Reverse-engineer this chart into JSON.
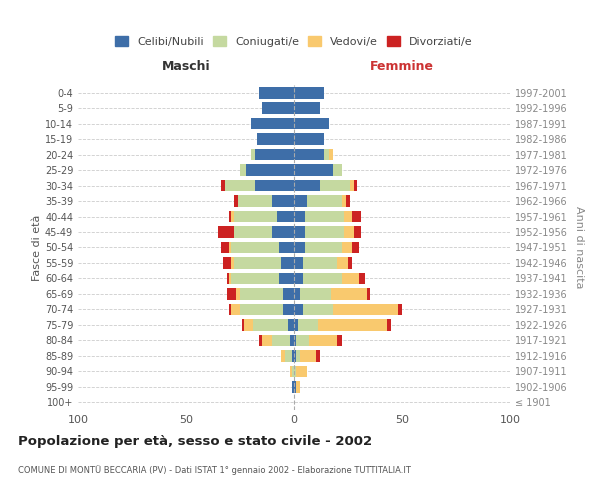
{
  "age_groups": [
    "100+",
    "95-99",
    "90-94",
    "85-89",
    "80-84",
    "75-79",
    "70-74",
    "65-69",
    "60-64",
    "55-59",
    "50-54",
    "45-49",
    "40-44",
    "35-39",
    "30-34",
    "25-29",
    "20-24",
    "15-19",
    "10-14",
    "5-9",
    "0-4"
  ],
  "birth_years": [
    "≤ 1901",
    "1902-1906",
    "1907-1911",
    "1912-1916",
    "1917-1921",
    "1922-1926",
    "1927-1931",
    "1932-1936",
    "1937-1941",
    "1942-1946",
    "1947-1951",
    "1952-1956",
    "1957-1961",
    "1962-1966",
    "1967-1971",
    "1972-1976",
    "1977-1981",
    "1982-1986",
    "1987-1991",
    "1992-1996",
    "1997-2001"
  ],
  "males": {
    "celibi": [
      0,
      1,
      0,
      1,
      2,
      3,
      5,
      5,
      7,
      6,
      7,
      10,
      8,
      10,
      18,
      22,
      18,
      17,
      20,
      15,
      16
    ],
    "coniugati": [
      0,
      0,
      1,
      3,
      8,
      16,
      20,
      20,
      22,
      22,
      22,
      18,
      20,
      16,
      14,
      3,
      2,
      0,
      0,
      0,
      0
    ],
    "vedovi": [
      0,
      0,
      1,
      2,
      5,
      4,
      4,
      2,
      1,
      1,
      1,
      0,
      1,
      0,
      0,
      0,
      0,
      0,
      0,
      0,
      0
    ],
    "divorziati": [
      0,
      0,
      0,
      0,
      1,
      1,
      1,
      4,
      1,
      4,
      4,
      7,
      1,
      2,
      2,
      0,
      0,
      0,
      0,
      0,
      0
    ]
  },
  "females": {
    "nubili": [
      0,
      1,
      0,
      1,
      1,
      2,
      4,
      3,
      4,
      4,
      5,
      5,
      5,
      6,
      12,
      18,
      14,
      14,
      16,
      12,
      14
    ],
    "coniugate": [
      0,
      0,
      1,
      2,
      6,
      9,
      14,
      14,
      18,
      16,
      17,
      18,
      18,
      16,
      14,
      4,
      2,
      0,
      0,
      0,
      0
    ],
    "vedove": [
      0,
      2,
      5,
      7,
      13,
      32,
      30,
      17,
      8,
      5,
      5,
      5,
      4,
      2,
      2,
      0,
      2,
      0,
      0,
      0,
      0
    ],
    "divorziate": [
      0,
      0,
      0,
      2,
      2,
      2,
      2,
      1,
      3,
      2,
      3,
      3,
      4,
      2,
      1,
      0,
      0,
      0,
      0,
      0,
      0
    ]
  },
  "colors": {
    "celibi_nubili": "#3e6ea8",
    "coniugati": "#c5d9a0",
    "vedovi": "#f9c96e",
    "divorziati": "#cc2222"
  },
  "xlim": 100,
  "title": "Popolazione per età, sesso e stato civile - 2002",
  "subtitle": "COMUNE DI MONTÜ BECCARIA (PV) - Dati ISTAT 1° gennaio 2002 - Elaborazione TUTTITALIA.IT",
  "ylabel_left": "Fasce di età",
  "ylabel_right": "Anni di nascita",
  "xlabel_left": "Maschi",
  "xlabel_right": "Femmine",
  "legend_labels": [
    "Celibi/Nubili",
    "Coniugati/e",
    "Vedovi/e",
    "Divorziati/e"
  ],
  "background_color": "#ffffff",
  "grid_color": "#cccccc"
}
